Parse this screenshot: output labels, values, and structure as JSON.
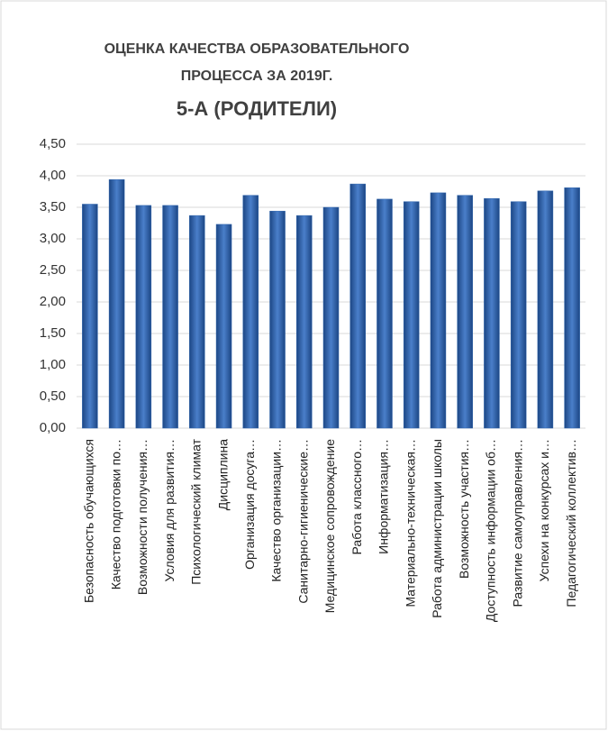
{
  "chart_data": {
    "type": "bar",
    "title": "ОЦЕНКА КАЧЕСТВА ОБРАЗОВАТЕЛЬНОГО ПРОЦЕССА ЗА 2019Г.",
    "subtitle": "5-А (РОДИТЕЛИ)",
    "categories": [
      "Безопасность обучающихся",
      "Качество подготовки по…",
      "Возможности получения…",
      "Условия для развития…",
      "Психологический климат",
      "Дисциплина",
      "Организация досуга…",
      "Качество организации…",
      "Санитарно-гигиенические…",
      "Медицинское сопровождение",
      "Работа классного…",
      "Информатизация…",
      "Материально-техническая…",
      "Работа администрации школы",
      "Возможность участия…",
      "Доступность информации об…",
      "Развитие самоуправления…",
      "Успехи на конкурсах и…",
      "Педагогический коллектив…"
    ],
    "values": [
      3.55,
      3.94,
      3.53,
      3.53,
      3.37,
      3.23,
      3.69,
      3.44,
      3.37,
      3.5,
      3.87,
      3.63,
      3.59,
      3.73,
      3.69,
      3.64,
      3.59,
      3.76,
      3.81
    ],
    "color": "#2e64ad",
    "ylim": [
      0,
      4.5
    ],
    "yticks": [
      {
        "value": 0,
        "label": "0,00"
      },
      {
        "value": 0.5,
        "label": "0,50"
      },
      {
        "value": 1,
        "label": "1,00"
      },
      {
        "value": 1.5,
        "label": "1,50"
      },
      {
        "value": 2,
        "label": "2,00"
      },
      {
        "value": 2.5,
        "label": "2,50"
      },
      {
        "value": 3,
        "label": "3,00"
      },
      {
        "value": 3.5,
        "label": "3,50"
      },
      {
        "value": 4,
        "label": "4,00"
      },
      {
        "value": 4.5,
        "label": "4,50"
      }
    ],
    "grid": true
  }
}
